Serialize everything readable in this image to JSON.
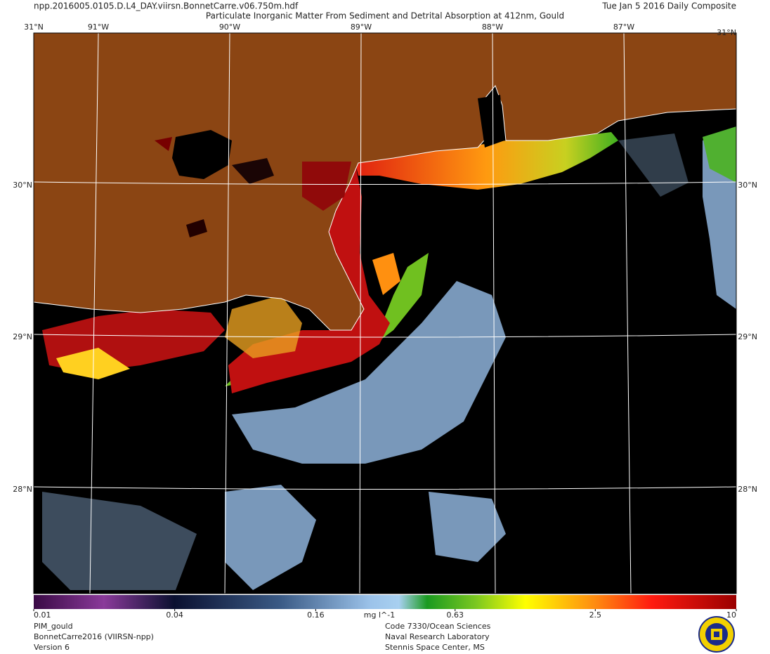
{
  "header": {
    "filename": "npp.2016005.0105.D.L4_DAY.viirsn.BonnetCarre.v06.750m.hdf",
    "title": "Particulate Inorganic Matter From Sediment and Detrital Absorption at 412nm, Gould",
    "date": "Tue Jan  5 2016 Daily Composite"
  },
  "map": {
    "corner_label": "31°N",
    "lon_labels": [
      "91°W",
      "90°W",
      "89°W",
      "88°W",
      "87°W"
    ],
    "lat_labels": [
      "30°N",
      "29°N",
      "28°N"
    ]
  },
  "colorbar": {
    "range": [
      0.01,
      10
    ],
    "scale": "log",
    "ticks": [
      0.01,
      0.04,
      0.16,
      0.63,
      2.5,
      10
    ],
    "unit": "mg l^-1"
  },
  "footer": {
    "left": [
      "PIM_gould",
      "BonnetCarre2016 (VIIRSN-npp)",
      "Version 6"
    ],
    "right": [
      "Code 7330/Ocean Sciences",
      "Naval Research Laboratory",
      "Stennis Space Center, MS"
    ]
  }
}
